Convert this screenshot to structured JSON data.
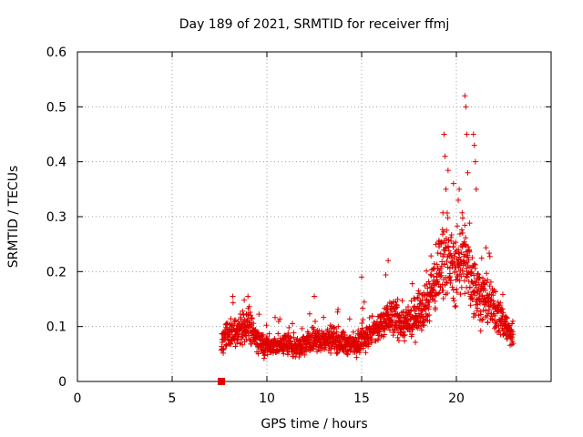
{
  "chart_data": {
    "type": "scatter",
    "title": "Day 189 of 2021, SRMTID for receiver ffmj",
    "xlabel": "GPS time / hours",
    "ylabel": "SRMTID / TECUs",
    "xlim": [
      0,
      25
    ],
    "ylim": [
      0,
      0.6
    ],
    "xticks": [
      0,
      5,
      10,
      15,
      20
    ],
    "yticks": [
      0,
      0.1,
      0.2,
      0.3,
      0.4,
      0.5,
      0.6
    ],
    "grid": true,
    "marker": "plus",
    "color": "#e00000",
    "series": [
      {
        "name": "SRMTID",
        "start_marker": {
          "x": 7.6,
          "y": 0.0
        },
        "envelope_x": [
          7.6,
          8.0,
          8.5,
          9.0,
          9.5,
          10.0,
          10.5,
          11.0,
          11.5,
          12.0,
          12.5,
          13.0,
          13.5,
          14.0,
          14.5,
          15.0,
          15.5,
          16.0,
          16.5,
          17.0,
          17.5,
          18.0,
          18.5,
          19.0,
          19.3,
          19.6,
          20.0,
          20.3,
          20.6,
          21.0,
          21.5,
          22.0,
          22.5,
          23.0
        ],
        "envelope_y": [
          0.075,
          0.085,
          0.09,
          0.11,
          0.075,
          0.065,
          0.065,
          0.07,
          0.06,
          0.07,
          0.075,
          0.075,
          0.08,
          0.07,
          0.065,
          0.08,
          0.085,
          0.1,
          0.12,
          0.11,
          0.1,
          0.13,
          0.15,
          0.19,
          0.24,
          0.22,
          0.2,
          0.24,
          0.2,
          0.17,
          0.15,
          0.13,
          0.11,
          0.075
        ],
        "spikes": [
          {
            "x": 19.35,
            "y": 0.45
          },
          {
            "x": 19.4,
            "y": 0.41
          },
          {
            "x": 19.45,
            "y": 0.35
          },
          {
            "x": 20.1,
            "y": 0.33
          },
          {
            "x": 20.15,
            "y": 0.35
          },
          {
            "x": 20.45,
            "y": 0.52
          },
          {
            "x": 20.5,
            "y": 0.5
          },
          {
            "x": 20.55,
            "y": 0.45
          },
          {
            "x": 20.6,
            "y": 0.38
          },
          {
            "x": 20.9,
            "y": 0.45
          },
          {
            "x": 20.95,
            "y": 0.43
          },
          {
            "x": 21.0,
            "y": 0.4
          },
          {
            "x": 21.05,
            "y": 0.35
          },
          {
            "x": 16.4,
            "y": 0.22
          },
          {
            "x": 15.0,
            "y": 0.19
          },
          {
            "x": 8.2,
            "y": 0.155
          },
          {
            "x": 9.0,
            "y": 0.155
          },
          {
            "x": 12.5,
            "y": 0.155
          }
        ]
      }
    ]
  }
}
